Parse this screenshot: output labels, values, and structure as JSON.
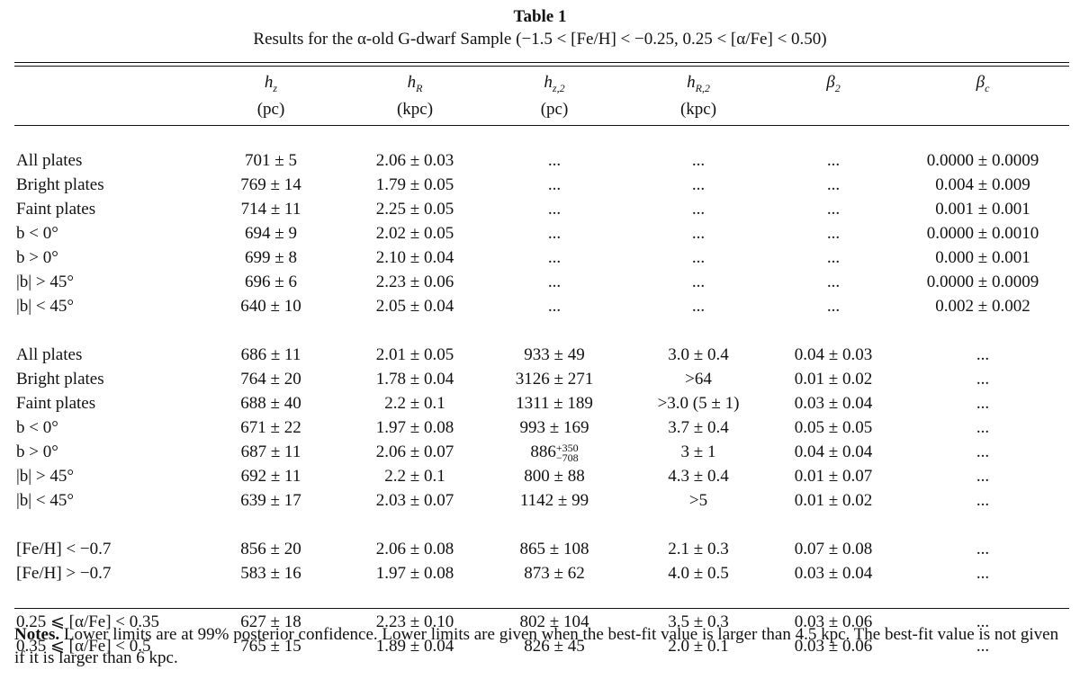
{
  "caption": {
    "title": "Table 1",
    "subtitle": "Results for the α-old G-dwarf Sample (−1.5 < [Fe/H] < −0.25, 0.25 < [α/Fe] < 0.50)"
  },
  "columns": [
    {
      "sym": "h",
      "sub": "z",
      "unit": "(pc)"
    },
    {
      "sym": "h",
      "sub": "R",
      "unit": "(kpc)"
    },
    {
      "sym": "h",
      "sub": "z,2",
      "unit": "(pc)"
    },
    {
      "sym": "h",
      "sub": "R,2",
      "unit": "(kpc)"
    },
    {
      "sym": "β",
      "sub": "2",
      "unit": ""
    },
    {
      "sym": "β",
      "sub": "c",
      "unit": ""
    }
  ],
  "groups": [
    [
      {
        "label": "All plates",
        "cells": [
          "701 ± 5",
          "2.06 ± 0.03",
          "...",
          "...",
          "...",
          "0.0000 ± 0.0009"
        ]
      },
      {
        "label": "Bright plates",
        "cells": [
          "769 ± 14",
          "1.79 ± 0.05",
          "...",
          "...",
          "...",
          "0.004 ± 0.009"
        ]
      },
      {
        "label": "Faint plates",
        "cells": [
          "714 ± 11",
          "2.25 ± 0.05",
          "...",
          "...",
          "...",
          "0.001 ± 0.001"
        ]
      },
      {
        "label": "b < 0°",
        "cells": [
          "694 ± 9",
          "2.02 ± 0.05",
          "...",
          "...",
          "...",
          "0.0000 ± 0.0010"
        ]
      },
      {
        "label": "b > 0°",
        "cells": [
          "699 ± 8",
          "2.10 ± 0.04",
          "...",
          "...",
          "...",
          "0.000 ± 0.001"
        ]
      },
      {
        "label": "|b| > 45°",
        "cells": [
          "696 ± 6",
          "2.23 ± 0.06",
          "...",
          "...",
          "...",
          "0.0000 ± 0.0009"
        ]
      },
      {
        "label": "|b| < 45°",
        "cells": [
          "640 ± 10",
          "2.05 ± 0.04",
          "...",
          "...",
          "...",
          "0.002 ± 0.002"
        ]
      }
    ],
    [
      {
        "label": "All plates",
        "cells": [
          "686 ± 11",
          "2.01 ± 0.05",
          "933 ± 49",
          "3.0 ± 0.4",
          "0.04 ± 0.03",
          "..."
        ]
      },
      {
        "label": "Bright plates",
        "cells": [
          "764 ± 20",
          "1.78 ± 0.04",
          "3126 ± 271",
          ">64",
          "0.01 ± 0.02",
          "..."
        ]
      },
      {
        "label": "Faint plates",
        "cells": [
          "688 ± 40",
          "2.2 ± 0.1",
          "1311 ± 189",
          ">3.0 (5 ± 1)",
          "0.03 ± 0.04",
          "..."
        ]
      },
      {
        "label": "b < 0°",
        "cells": [
          "671 ± 22",
          "1.97 ± 0.08",
          "993 ± 169",
          "3.7 ± 0.4",
          "0.05 ± 0.05",
          "..."
        ]
      },
      {
        "label": "b > 0°",
        "cells": [
          "687 ± 11",
          "2.06 ± 0.07",
          "886",
          "3 ± 1",
          "0.04 ± 0.04",
          "..."
        ],
        "hz2_sup": "+350",
        "hz2_sub": "−708"
      },
      {
        "label": "|b| > 45°",
        "cells": [
          "692 ± 11",
          "2.2 ± 0.1",
          "800 ± 88",
          "4.3 ± 0.4",
          "0.01 ± 0.07",
          "..."
        ]
      },
      {
        "label": "|b| < 45°",
        "cells": [
          "639 ± 17",
          "2.03 ± 0.07",
          "1142 ± 99",
          ">5",
          "0.01 ± 0.02",
          "..."
        ]
      }
    ],
    [
      {
        "label": "[Fe/H] < −0.7",
        "cells": [
          "856 ± 20",
          "2.06 ± 0.08",
          "865 ± 108",
          "2.1 ± 0.3",
          "0.07 ± 0.08",
          "..."
        ]
      },
      {
        "label": "[Fe/H] > −0.7",
        "cells": [
          "583 ± 16",
          "1.97 ± 0.08",
          "873 ± 62",
          "4.0 ± 0.5",
          "0.03 ± 0.04",
          "..."
        ]
      }
    ],
    [
      {
        "label": "0.25 ⩽ [α/Fe] < 0.35",
        "cells": [
          "627 ± 18",
          "2.23 ± 0.10",
          "802 ± 104",
          "3.5 ± 0.3",
          "0.03 ± 0.06",
          "..."
        ]
      },
      {
        "label": "0.35 ⩽ [α/Fe] < 0.5",
        "cells": [
          "765 ± 15",
          "1.89 ± 0.04",
          "826 ± 45",
          "2.0 ± 0.1",
          "0.03 ± 0.06",
          "..."
        ]
      }
    ]
  ],
  "notes": {
    "label": "Notes.",
    "text": " Lower limits are at 99% posterior confidence. Lower limits are given when the best-fit value is larger than 4.5 kpc. The best-fit value is not given if it is larger than 6 kpc."
  }
}
